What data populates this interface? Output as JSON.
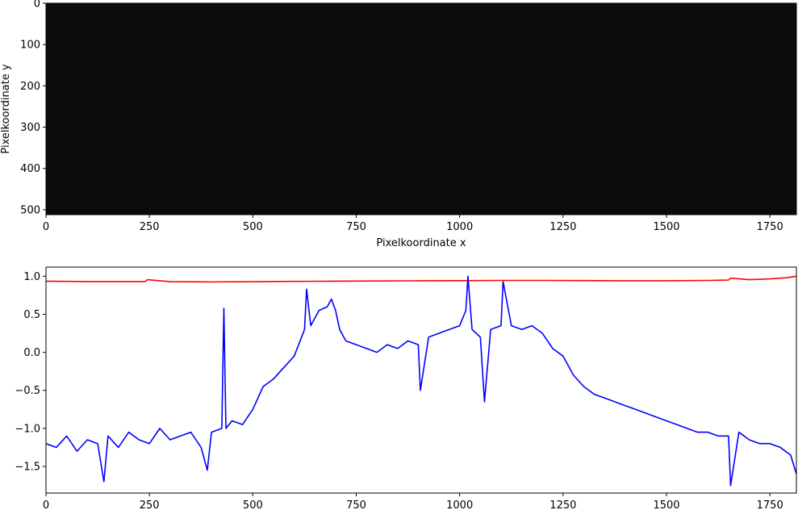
{
  "chart_data": [
    {
      "type": "heatmap",
      "title": "",
      "xlabel": "Pixelkoordinate x",
      "ylabel": "Pixelkoordinate y",
      "xlim": [
        0,
        1814
      ],
      "ylim": [
        512,
        0
      ],
      "xticks": [
        "0",
        "250",
        "500",
        "750",
        "1000",
        "1250",
        "1500",
        "1750"
      ],
      "yticks": [
        "0",
        "100",
        "200",
        "300",
        "400",
        "500"
      ],
      "background_color": "#0b0b0b",
      "grid": false
    },
    {
      "type": "line",
      "title": "",
      "xlabel": "",
      "ylabel": "",
      "xlim": [
        0,
        1814
      ],
      "ylim": [
        -1.85,
        1.12
      ],
      "xticks": [
        "0",
        "250",
        "500",
        "750",
        "1000",
        "1250",
        "1500",
        "1750"
      ],
      "yticks": [
        "−1.5",
        "−1.0",
        "−0.5",
        "0.0",
        "0.5",
        "1.0"
      ],
      "grid": false,
      "series": [
        {
          "color": "#ff0000",
          "x": [
            0,
            100,
            200,
            240,
            245,
            300,
            400,
            500,
            600,
            700,
            800,
            900,
            1000,
            1100,
            1200,
            1300,
            1400,
            1500,
            1600,
            1650,
            1655,
            1700,
            1750,
            1790,
            1814
          ],
          "y": [
            0.935,
            0.93,
            0.93,
            0.93,
            0.955,
            0.928,
            0.925,
            0.928,
            0.932,
            0.935,
            0.938,
            0.94,
            0.942,
            0.945,
            0.945,
            0.943,
            0.94,
            0.94,
            0.945,
            0.95,
            0.975,
            0.955,
            0.965,
            0.98,
            1.0
          ]
        },
        {
          "color": "#0000ff",
          "x": [
            0,
            25,
            50,
            75,
            100,
            125,
            140,
            150,
            175,
            200,
            225,
            250,
            275,
            300,
            325,
            350,
            375,
            390,
            400,
            425,
            430,
            435,
            450,
            475,
            500,
            525,
            550,
            575,
            600,
            625,
            630,
            640,
            660,
            680,
            690,
            700,
            710,
            725,
            750,
            775,
            800,
            825,
            850,
            875,
            900,
            905,
            925,
            950,
            975,
            1000,
            1015,
            1020,
            1030,
            1050,
            1060,
            1075,
            1100,
            1105,
            1125,
            1150,
            1175,
            1200,
            1225,
            1250,
            1275,
            1300,
            1325,
            1350,
            1375,
            1400,
            1425,
            1450,
            1475,
            1500,
            1525,
            1550,
            1575,
            1600,
            1625,
            1650,
            1655,
            1675,
            1700,
            1725,
            1750,
            1775,
            1800,
            1814
          ],
          "y": [
            -1.2,
            -1.25,
            -1.1,
            -1.3,
            -1.15,
            -1.2,
            -1.7,
            -1.1,
            -1.25,
            -1.05,
            -1.15,
            -1.2,
            -1.0,
            -1.15,
            -1.1,
            -1.05,
            -1.25,
            -1.55,
            -1.05,
            -1.0,
            0.58,
            -1.0,
            -0.9,
            -0.95,
            -0.75,
            -0.45,
            -0.35,
            -0.2,
            -0.05,
            0.3,
            0.83,
            0.35,
            0.55,
            0.6,
            0.7,
            0.55,
            0.3,
            0.15,
            0.1,
            0.05,
            0.0,
            0.1,
            0.05,
            0.15,
            0.1,
            -0.5,
            0.2,
            0.25,
            0.3,
            0.35,
            0.55,
            1.0,
            0.3,
            0.2,
            -0.65,
            0.3,
            0.35,
            0.93,
            0.35,
            0.3,
            0.35,
            0.25,
            0.05,
            -0.05,
            -0.3,
            -0.45,
            -0.55,
            -0.6,
            -0.65,
            -0.7,
            -0.75,
            -0.8,
            -0.85,
            -0.9,
            -0.95,
            -1.0,
            -1.05,
            -1.05,
            -1.1,
            -1.1,
            -1.75,
            -1.05,
            -1.15,
            -1.2,
            -1.2,
            -1.25,
            -1.35,
            -1.6
          ]
        }
      ]
    }
  ]
}
